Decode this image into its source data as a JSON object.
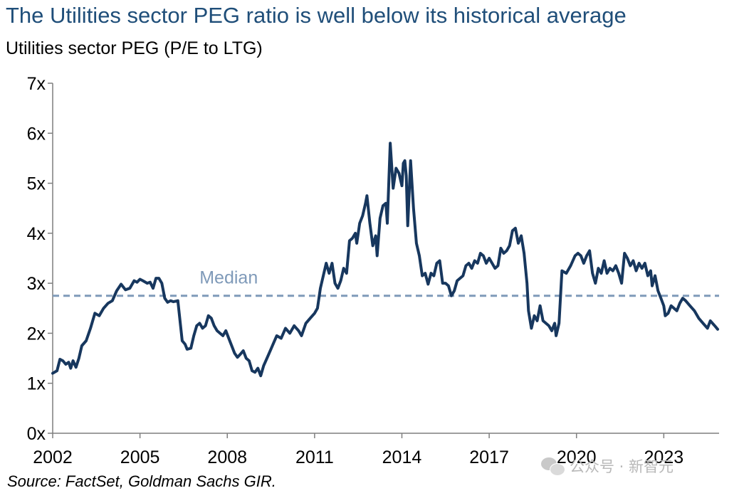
{
  "chart_data": {
    "type": "line",
    "title": "The Utilities sector PEG ratio is well below its historical average",
    "subtitle": "Utilities sector PEG (P/E to LTG)",
    "source": "Source: FactSet, Goldman Sachs GIR.",
    "xlim": [
      2002.0,
      2024.9
    ],
    "ylim": [
      0,
      7
    ],
    "x_ticks": [
      {
        "value": 2002,
        "label": "2002"
      },
      {
        "value": 2005,
        "label": "2005"
      },
      {
        "value": 2008,
        "label": "2008"
      },
      {
        "value": 2011,
        "label": "2011"
      },
      {
        "value": 2014,
        "label": "2014"
      },
      {
        "value": 2017,
        "label": "2017"
      },
      {
        "value": 2020,
        "label": "2020"
      },
      {
        "value": 2023,
        "label": "2023"
      }
    ],
    "y_ticks": [
      {
        "value": 0,
        "label": "0x"
      },
      {
        "value": 1,
        "label": "1x"
      },
      {
        "value": 2,
        "label": "2x"
      },
      {
        "value": 3,
        "label": "3x"
      },
      {
        "value": 4,
        "label": "4x"
      },
      {
        "value": 5,
        "label": "5x"
      },
      {
        "value": 6,
        "label": "6x"
      },
      {
        "value": 7,
        "label": "7x"
      }
    ],
    "grid": false,
    "colors": {
      "series": "#17375e",
      "median": "#7f9ab9"
    },
    "median": {
      "label": "Median",
      "value": 2.75
    },
    "series": [
      {
        "points": [
          [
            2002.0,
            1.2
          ],
          [
            2002.15,
            1.25
          ],
          [
            2002.25,
            1.48
          ],
          [
            2002.35,
            1.45
          ],
          [
            2002.45,
            1.38
          ],
          [
            2002.55,
            1.42
          ],
          [
            2002.62,
            1.3
          ],
          [
            2002.7,
            1.45
          ],
          [
            2002.8,
            1.32
          ],
          [
            2002.9,
            1.5
          ],
          [
            2003.0,
            1.75
          ],
          [
            2003.15,
            1.85
          ],
          [
            2003.3,
            2.1
          ],
          [
            2003.45,
            2.4
          ],
          [
            2003.6,
            2.35
          ],
          [
            2003.75,
            2.5
          ],
          [
            2003.9,
            2.6
          ],
          [
            2004.05,
            2.65
          ],
          [
            2004.2,
            2.85
          ],
          [
            2004.35,
            2.98
          ],
          [
            2004.5,
            2.87
          ],
          [
            2004.65,
            2.9
          ],
          [
            2004.8,
            3.05
          ],
          [
            2004.9,
            3.02
          ],
          [
            2005.0,
            3.08
          ],
          [
            2005.1,
            3.05
          ],
          [
            2005.25,
            3.0
          ],
          [
            2005.35,
            3.02
          ],
          [
            2005.45,
            2.9
          ],
          [
            2005.55,
            3.1
          ],
          [
            2005.65,
            3.1
          ],
          [
            2005.75,
            3.0
          ],
          [
            2005.85,
            2.7
          ],
          [
            2005.95,
            2.62
          ],
          [
            2006.05,
            2.65
          ],
          [
            2006.15,
            2.63
          ],
          [
            2006.3,
            2.65
          ],
          [
            2006.45,
            1.85
          ],
          [
            2006.55,
            1.78
          ],
          [
            2006.62,
            1.68
          ],
          [
            2006.75,
            1.7
          ],
          [
            2006.85,
            1.95
          ],
          [
            2006.95,
            2.15
          ],
          [
            2007.05,
            2.2
          ],
          [
            2007.15,
            2.1
          ],
          [
            2007.25,
            2.15
          ],
          [
            2007.35,
            2.35
          ],
          [
            2007.45,
            2.3
          ],
          [
            2007.55,
            2.15
          ],
          [
            2007.65,
            2.05
          ],
          [
            2007.75,
            2.0
          ],
          [
            2007.85,
            1.95
          ],
          [
            2007.95,
            2.05
          ],
          [
            2008.05,
            1.9
          ],
          [
            2008.15,
            1.75
          ],
          [
            2008.25,
            1.6
          ],
          [
            2008.35,
            1.52
          ],
          [
            2008.45,
            1.58
          ],
          [
            2008.55,
            1.65
          ],
          [
            2008.65,
            1.5
          ],
          [
            2008.75,
            1.45
          ],
          [
            2008.85,
            1.25
          ],
          [
            2008.95,
            1.22
          ],
          [
            2009.05,
            1.3
          ],
          [
            2009.15,
            1.15
          ],
          [
            2009.25,
            1.35
          ],
          [
            2009.4,
            1.55
          ],
          [
            2009.55,
            1.75
          ],
          [
            2009.7,
            1.95
          ],
          [
            2009.85,
            1.9
          ],
          [
            2010.0,
            2.1
          ],
          [
            2010.15,
            2.0
          ],
          [
            2010.3,
            2.15
          ],
          [
            2010.45,
            2.05
          ],
          [
            2010.55,
            1.95
          ],
          [
            2010.7,
            2.2
          ],
          [
            2010.85,
            2.3
          ],
          [
            2011.0,
            2.4
          ],
          [
            2011.1,
            2.5
          ],
          [
            2011.2,
            2.9
          ],
          [
            2011.3,
            3.15
          ],
          [
            2011.4,
            3.4
          ],
          [
            2011.5,
            3.2
          ],
          [
            2011.6,
            3.4
          ],
          [
            2011.7,
            3.0
          ],
          [
            2011.8,
            2.9
          ],
          [
            2011.9,
            3.05
          ],
          [
            2012.0,
            3.3
          ],
          [
            2012.1,
            3.2
          ],
          [
            2012.2,
            3.85
          ],
          [
            2012.3,
            3.9
          ],
          [
            2012.4,
            4.0
          ],
          [
            2012.45,
            3.8
          ],
          [
            2012.55,
            4.2
          ],
          [
            2012.65,
            4.35
          ],
          [
            2012.75,
            4.6
          ],
          [
            2012.8,
            4.75
          ],
          [
            2012.9,
            4.2
          ],
          [
            2013.0,
            3.75
          ],
          [
            2013.1,
            3.95
          ],
          [
            2013.15,
            3.55
          ],
          [
            2013.25,
            4.3
          ],
          [
            2013.35,
            4.55
          ],
          [
            2013.45,
            4.6
          ],
          [
            2013.5,
            4.2
          ],
          [
            2013.6,
            5.8
          ],
          [
            2013.7,
            4.9
          ],
          [
            2013.8,
            5.3
          ],
          [
            2013.9,
            5.2
          ],
          [
            2014.0,
            4.95
          ],
          [
            2014.05,
            5.4
          ],
          [
            2014.1,
            5.45
          ],
          [
            2014.15,
            5.15
          ],
          [
            2014.2,
            4.15
          ],
          [
            2014.3,
            5.45
          ],
          [
            2014.4,
            4.5
          ],
          [
            2014.5,
            3.8
          ],
          [
            2014.6,
            3.55
          ],
          [
            2014.7,
            3.15
          ],
          [
            2014.8,
            3.2
          ],
          [
            2014.9,
            2.98
          ],
          [
            2015.0,
            3.2
          ],
          [
            2015.1,
            3.15
          ],
          [
            2015.2,
            3.4
          ],
          [
            2015.3,
            3.45
          ],
          [
            2015.4,
            3.0
          ],
          [
            2015.5,
            3.0
          ],
          [
            2015.6,
            2.95
          ],
          [
            2015.7,
            2.75
          ],
          [
            2015.8,
            2.85
          ],
          [
            2015.9,
            3.05
          ],
          [
            2016.0,
            3.1
          ],
          [
            2016.1,
            3.15
          ],
          [
            2016.2,
            3.35
          ],
          [
            2016.3,
            3.4
          ],
          [
            2016.4,
            3.3
          ],
          [
            2016.5,
            3.45
          ],
          [
            2016.6,
            3.4
          ],
          [
            2016.7,
            3.6
          ],
          [
            2016.8,
            3.55
          ],
          [
            2016.9,
            3.4
          ],
          [
            2017.0,
            3.5
          ],
          [
            2017.1,
            3.4
          ],
          [
            2017.2,
            3.3
          ],
          [
            2017.3,
            3.35
          ],
          [
            2017.4,
            3.7
          ],
          [
            2017.5,
            3.6
          ],
          [
            2017.6,
            3.65
          ],
          [
            2017.7,
            3.75
          ],
          [
            2017.8,
            4.05
          ],
          [
            2017.9,
            4.1
          ],
          [
            2018.0,
            3.8
          ],
          [
            2018.1,
            3.95
          ],
          [
            2018.2,
            3.6
          ],
          [
            2018.3,
            3.0
          ],
          [
            2018.35,
            2.45
          ],
          [
            2018.45,
            2.1
          ],
          [
            2018.55,
            2.35
          ],
          [
            2018.65,
            2.25
          ],
          [
            2018.75,
            2.55
          ],
          [
            2018.85,
            2.25
          ],
          [
            2018.95,
            2.2
          ],
          [
            2019.05,
            2.15
          ],
          [
            2019.15,
            2.05
          ],
          [
            2019.25,
            2.2
          ],
          [
            2019.3,
            1.95
          ],
          [
            2019.4,
            2.2
          ],
          [
            2019.5,
            3.25
          ],
          [
            2019.65,
            3.2
          ],
          [
            2019.8,
            3.35
          ],
          [
            2019.95,
            3.55
          ],
          [
            2020.05,
            3.6
          ],
          [
            2020.15,
            3.55
          ],
          [
            2020.25,
            3.4
          ],
          [
            2020.35,
            3.55
          ],
          [
            2020.45,
            3.65
          ],
          [
            2020.55,
            3.2
          ],
          [
            2020.65,
            3.0
          ],
          [
            2020.75,
            3.3
          ],
          [
            2020.85,
            3.2
          ],
          [
            2020.95,
            3.45
          ],
          [
            2021.05,
            3.2
          ],
          [
            2021.15,
            3.3
          ],
          [
            2021.25,
            3.25
          ],
          [
            2021.35,
            3.35
          ],
          [
            2021.45,
            3.2
          ],
          [
            2021.55,
            3.0
          ],
          [
            2021.65,
            3.6
          ],
          [
            2021.75,
            3.5
          ],
          [
            2021.85,
            3.35
          ],
          [
            2021.95,
            3.45
          ],
          [
            2022.05,
            3.25
          ],
          [
            2022.15,
            3.4
          ],
          [
            2022.25,
            3.3
          ],
          [
            2022.35,
            3.4
          ],
          [
            2022.45,
            3.15
          ],
          [
            2022.55,
            3.25
          ],
          [
            2022.6,
            2.95
          ],
          [
            2022.7,
            3.15
          ],
          [
            2022.8,
            2.85
          ],
          [
            2022.9,
            2.7
          ],
          [
            2023.0,
            2.55
          ],
          [
            2023.05,
            2.35
          ],
          [
            2023.15,
            2.4
          ],
          [
            2023.25,
            2.55
          ],
          [
            2023.35,
            2.5
          ],
          [
            2023.45,
            2.45
          ],
          [
            2023.55,
            2.6
          ],
          [
            2023.65,
            2.7
          ],
          [
            2023.75,
            2.65
          ],
          [
            2023.9,
            2.55
          ],
          [
            2024.05,
            2.45
          ],
          [
            2024.2,
            2.3
          ],
          [
            2024.35,
            2.2
          ],
          [
            2024.5,
            2.1
          ],
          [
            2024.6,
            2.25
          ],
          [
            2024.75,
            2.15
          ],
          [
            2024.85,
            2.08
          ]
        ]
      }
    ]
  },
  "watermark": {
    "text": "公众号 · 新智元",
    "icon": "wechat-icon"
  }
}
